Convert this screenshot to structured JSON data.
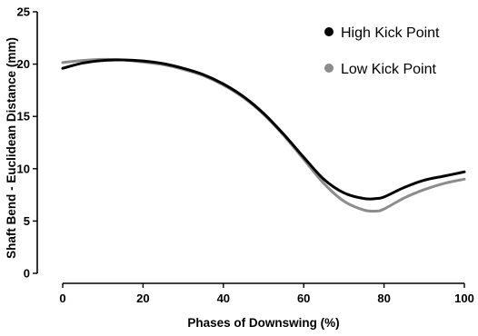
{
  "chart_data": {
    "type": "line",
    "title": "",
    "xlabel": "Phases of Downswing (%)",
    "ylabel": "Shaft Bend - Euclidean Distance (mm)",
    "xlim": [
      0,
      100
    ],
    "ylim": [
      0,
      25
    ],
    "xticks": [
      0,
      20,
      40,
      60,
      80,
      100
    ],
    "yticks": [
      0,
      5,
      10,
      15,
      20,
      25
    ],
    "grid": false,
    "legend_position": "top-right",
    "x": [
      0,
      5,
      10,
      15,
      20,
      25,
      30,
      35,
      40,
      45,
      50,
      55,
      60,
      65,
      70,
      75,
      78,
      80,
      85,
      90,
      95,
      100
    ],
    "series": [
      {
        "name": "High Kick Point",
        "color": "#000000",
        "values": [
          19.6,
          20.1,
          20.35,
          20.4,
          20.3,
          20.05,
          19.6,
          19.0,
          18.1,
          16.9,
          15.3,
          13.3,
          11.1,
          9.0,
          7.7,
          7.15,
          7.15,
          7.3,
          8.2,
          8.9,
          9.3,
          9.7
        ]
      },
      {
        "name": "Low Kick Point",
        "color": "#8c8c8c",
        "values": [
          20.15,
          20.35,
          20.45,
          20.4,
          20.2,
          19.95,
          19.5,
          18.9,
          18.0,
          16.8,
          15.2,
          13.2,
          10.9,
          8.6,
          6.9,
          6.05,
          5.95,
          6.15,
          7.2,
          8.0,
          8.6,
          9.0
        ]
      }
    ]
  }
}
